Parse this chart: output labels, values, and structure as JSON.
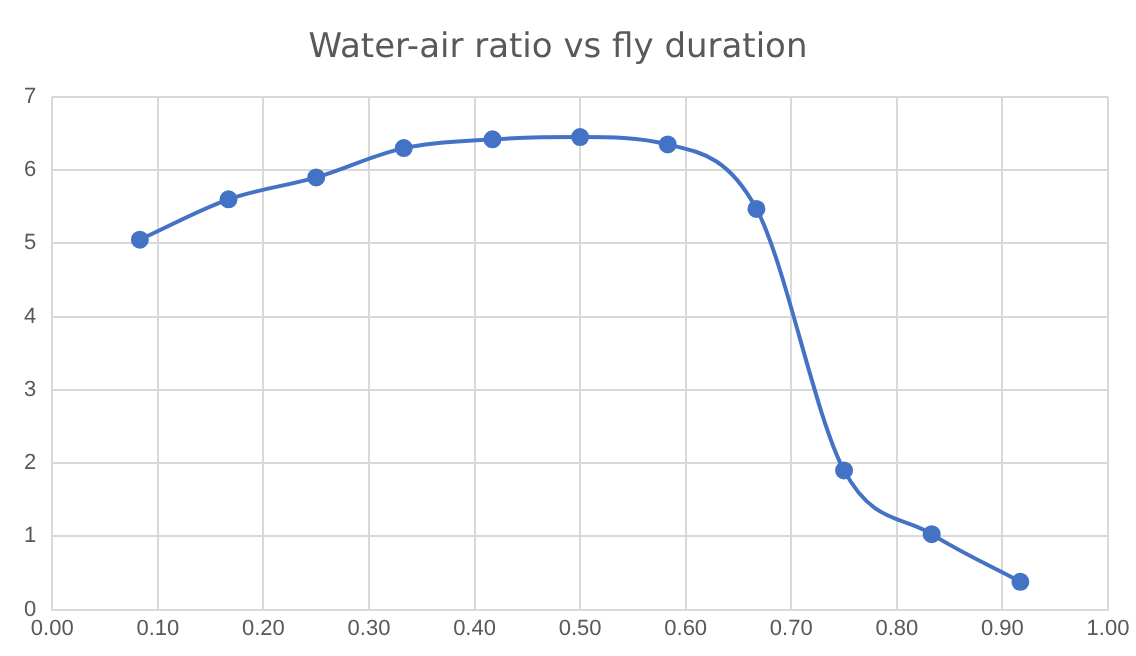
{
  "chart_data": {
    "type": "line",
    "title": "Water-air ratio vs fly duration",
    "x": [
      0.083,
      0.167,
      0.25,
      0.333,
      0.417,
      0.5,
      0.583,
      0.667,
      0.75,
      0.833,
      0.917
    ],
    "series": [
      {
        "color": "#4472c4",
        "values": [
          5.05,
          5.6,
          5.9,
          6.3,
          6.42,
          6.45,
          6.35,
          5.47,
          1.9,
          1.03,
          0.38
        ]
      }
    ],
    "xlim": [
      0,
      1
    ],
    "xticks": [
      {
        "value": 0,
        "label": "0.00"
      },
      {
        "value": 0.1,
        "label": "0.10"
      },
      {
        "value": 0.2,
        "label": "0.20"
      },
      {
        "value": 0.3,
        "label": "0.30"
      },
      {
        "value": 0.4,
        "label": "0.40"
      },
      {
        "value": 0.5,
        "label": "0.50"
      },
      {
        "value": 0.6,
        "label": "0.60"
      },
      {
        "value": 0.7,
        "label": "0.70"
      },
      {
        "value": 0.8,
        "label": "0.80"
      },
      {
        "value": 0.9,
        "label": "0.90"
      },
      {
        "value": 1,
        "label": "1.00"
      }
    ],
    "ylim": [
      0,
      7
    ],
    "yticks": [
      0,
      1,
      2,
      3,
      4,
      5,
      6,
      7
    ],
    "grid": true,
    "legend": false,
    "marker": "circle",
    "line_style": "solid"
  }
}
